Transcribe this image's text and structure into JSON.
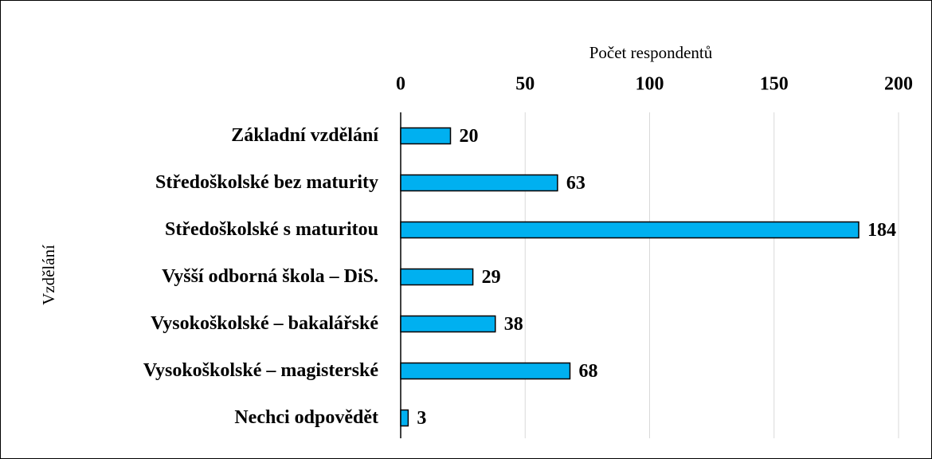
{
  "chart_data": {
    "type": "bar",
    "x_label": "Počet respondentů",
    "y_label": "Vzdělání",
    "categories": [
      "Základní vzdělání",
      "Středoškolské bez maturity",
      "Středoškolské s maturitou",
      "Vyšší odborná škola – DiS.",
      "Vysokoškolské – bakalářské",
      "Vysokoškolské – magisterské",
      "Nechci odpovědět"
    ],
    "values": [
      20,
      63,
      184,
      29,
      38,
      68,
      3
    ],
    "color": "#00b0f0",
    "xlim": [
      0,
      200
    ],
    "xticks": [
      0,
      50,
      100,
      150,
      200
    ],
    "grid": true
  }
}
